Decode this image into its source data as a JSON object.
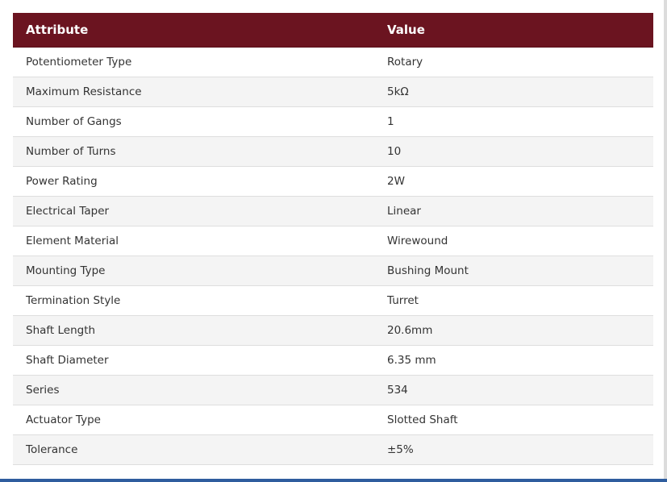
{
  "table": {
    "header": {
      "attribute": "Attribute",
      "value": "Value"
    },
    "rows": [
      {
        "attribute": "Potentiometer Type",
        "value": "Rotary"
      },
      {
        "attribute": "Maximum Resistance",
        "value": "5kΩ"
      },
      {
        "attribute": "Number of Gangs",
        "value": "1"
      },
      {
        "attribute": "Number of Turns",
        "value": "10"
      },
      {
        "attribute": "Power Rating",
        "value": "2W"
      },
      {
        "attribute": "Electrical Taper",
        "value": "Linear"
      },
      {
        "attribute": "Element Material",
        "value": "Wirewound"
      },
      {
        "attribute": "Mounting Type",
        "value": "Bushing Mount"
      },
      {
        "attribute": "Termination Style",
        "value": "Turret"
      },
      {
        "attribute": "Shaft Length",
        "value": "20.6mm"
      },
      {
        "attribute": "Shaft Diameter",
        "value": "6.35 mm"
      },
      {
        "attribute": "Series",
        "value": "534"
      },
      {
        "attribute": "Actuator Type",
        "value": "Slotted Shaft"
      },
      {
        "attribute": "Tolerance",
        "value": "±5%"
      }
    ]
  },
  "colors": {
    "header_bg": "#6b1420",
    "header_text": "#ffffff",
    "row_alt_bg": "#f4f4f4",
    "bottom_bar": "#2f5d9e"
  }
}
